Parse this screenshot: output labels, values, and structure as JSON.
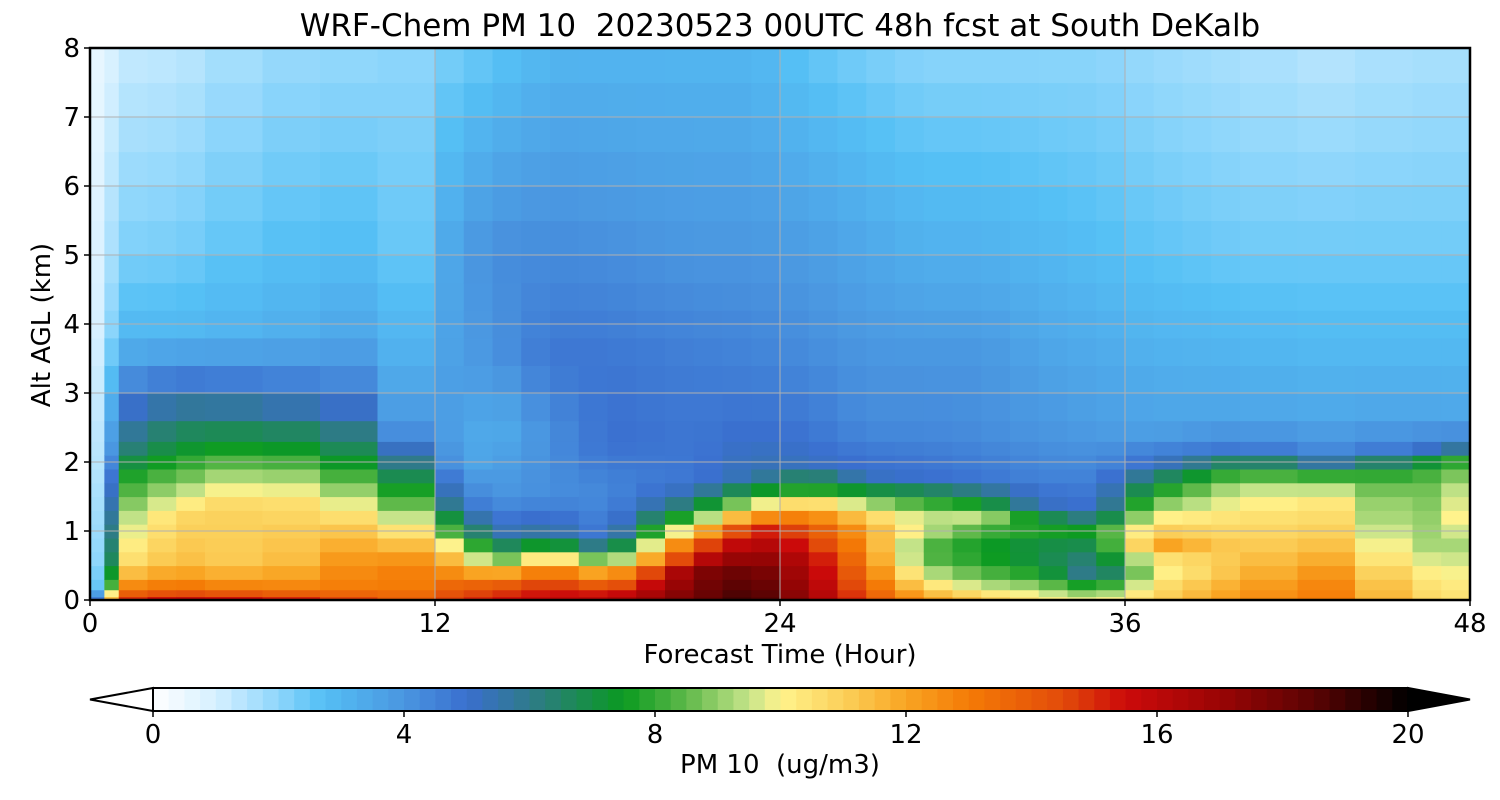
{
  "chart_data": {
    "type": "heatmap",
    "title": "WRF-Chem PM 10  20230523 00UTC 48h fcst at South DeKalb",
    "xlabel": "Forecast Time (Hour)",
    "ylabel": "Alt AGL (km)",
    "xlim": [
      0,
      48
    ],
    "ylim": [
      0,
      8
    ],
    "xticks": [
      0,
      12,
      24,
      36,
      48
    ],
    "yticks": [
      0,
      1,
      2,
      3,
      4,
      5,
      6,
      7,
      8
    ],
    "grid": true,
    "colorbar": {
      "label": "PM 10  (ug/m3)",
      "range": [
        0,
        20
      ],
      "ticks": [
        0,
        4,
        8,
        12,
        16,
        20
      ],
      "extend": "both",
      "orientation": "horizontal",
      "placement": "bottom"
    },
    "x": [
      0,
      0.5,
      1,
      2,
      3,
      4,
      6,
      8,
      10,
      12,
      13,
      14,
      15,
      16,
      17,
      18,
      19,
      20,
      21,
      22,
      23,
      24,
      25,
      26,
      27,
      28,
      29,
      30,
      31,
      32,
      33,
      34,
      35,
      36,
      37,
      38,
      39,
      40,
      42,
      44,
      46,
      47,
      48
    ],
    "y": [
      0,
      0.05,
      0.15,
      0.3,
      0.5,
      0.7,
      0.9,
      1.1,
      1.3,
      1.5,
      1.7,
      1.9,
      2.1,
      2.3,
      2.6,
      3.0,
      3.4,
      3.8,
      4.2,
      4.6,
      5.0,
      5.5,
      6.0,
      6.5,
      7.0,
      7.5,
      8.0
    ],
    "z_approx": "PM10 concentration (ug/m3) by forecast hour (x) and altitude (y); see profile keyframes",
    "profiles": [
      {
        "t": 0,
        "alt": [
          0,
          8
        ],
        "pm": [
          1,
          0.5
        ]
      },
      {
        "t": 0.5,
        "alt": [
          0,
          0.2,
          0.6,
          2,
          4,
          8
        ],
        "pm": [
          9,
          4,
          3,
          2,
          1.2,
          0.6
        ]
      },
      {
        "t": 1,
        "alt": [
          0,
          0.15,
          0.5,
          1.2,
          1.8,
          2.2,
          3,
          3.8,
          5,
          8
        ],
        "pm": [
          15,
          13,
          10.5,
          9,
          7.5,
          6,
          4.5,
          3,
          2.2,
          1.2
        ]
      },
      {
        "t": 3,
        "alt": [
          0,
          0.15,
          0.5,
          1.2,
          1.8,
          2.2,
          3,
          3.8,
          5,
          8
        ],
        "pm": [
          16.5,
          13.5,
          11.5,
          10.8,
          8.5,
          7.2,
          5.3,
          3,
          2.3,
          1.3
        ]
      },
      {
        "t": 6,
        "alt": [
          0,
          0.15,
          0.5,
          1.4,
          1.8,
          2.3,
          3,
          3.8,
          5,
          8
        ],
        "pm": [
          16,
          13,
          11,
          11,
          9.5,
          7.3,
          5,
          3.2,
          2.7,
          1.8
        ]
      },
      {
        "t": 9,
        "alt": [
          0,
          0.15,
          0.5,
          1.1,
          1.6,
          2.1,
          3,
          3.8,
          5,
          8
        ],
        "pm": [
          15,
          13,
          12.5,
          11,
          9,
          7,
          4.6,
          3.5,
          2.8,
          1.9
        ]
      },
      {
        "t": 11,
        "alt": [
          0,
          0.2,
          0.5,
          1.0,
          1.4,
          1.8,
          2.5,
          3.5,
          5,
          8
        ],
        "pm": [
          14,
          13,
          12.8,
          10.5,
          8.5,
          6.8,
          4,
          3.2,
          2.5,
          2
        ]
      },
      {
        "t": 13,
        "alt": [
          0,
          0.2,
          0.4,
          0.7,
          1.0,
          1.4,
          2,
          3,
          5,
          8
        ],
        "pm": [
          15,
          14,
          12.5,
          10.5,
          7.5,
          5,
          3.5,
          3.8,
          3.8,
          2.3
        ]
      },
      {
        "t": 14,
        "alt": [
          0,
          0.2,
          0.4,
          0.6,
          0.9,
          1.5,
          2.5,
          3.5,
          5,
          8
        ],
        "pm": [
          15.5,
          14,
          11.5,
          8,
          5.5,
          4,
          3.2,
          4,
          4.2,
          2.5
        ]
      },
      {
        "t": 16,
        "alt": [
          0,
          0.3,
          0.6,
          0.9,
          1.5,
          2.5,
          3.5,
          5,
          8
        ],
        "pm": [
          16,
          14.5,
          11,
          6,
          4.2,
          4.2,
          4.8,
          4.3,
          3
        ]
      },
      {
        "t": 18,
        "alt": [
          0,
          0.2,
          0.45,
          0.7,
          1.0,
          1.5,
          2.3,
          3.5,
          5,
          8
        ],
        "pm": [
          16.5,
          14,
          11,
          6,
          4.5,
          4.3,
          5,
          4.8,
          4.2,
          3
        ]
      },
      {
        "t": 21,
        "alt": [
          0,
          0.4,
          0.8,
          1.0,
          1.3,
          1.7,
          2.5,
          3.5,
          5,
          8
        ],
        "pm": [
          18,
          17.5,
          14,
          11,
          7,
          4.8,
          4.8,
          4.6,
          4,
          3
        ]
      },
      {
        "t": 23,
        "alt": [
          0,
          0.5,
          1.0,
          1.3,
          1.5,
          1.8,
          2.5,
          3.5,
          5,
          8
        ],
        "pm": [
          19.2,
          18,
          15.5,
          11,
          8,
          5.5,
          5,
          4.5,
          4,
          3
        ]
      },
      {
        "t": 25,
        "alt": [
          0,
          0.6,
          1.1,
          1.4,
          1.6,
          2.0,
          2.5,
          3.5,
          5,
          8
        ],
        "pm": [
          17,
          16,
          14,
          11,
          8,
          5.2,
          4.8,
          4.3,
          3.8,
          2.5
        ]
      },
      {
        "t": 27,
        "alt": [
          0,
          0.5,
          1.0,
          1.3,
          1.5,
          1.8,
          2.5,
          3.5,
          5,
          8
        ],
        "pm": [
          14.5,
          13,
          12,
          10.5,
          8,
          5.2,
          4.3,
          4,
          3.5,
          2.2
        ]
      },
      {
        "t": 29,
        "alt": [
          0,
          0.3,
          0.7,
          1.1,
          1.5,
          1.8,
          2.5,
          3.5,
          5,
          8
        ],
        "pm": [
          12.5,
          10,
          8,
          10,
          7.5,
          5,
          4.3,
          4,
          3.2,
          2
        ]
      },
      {
        "t": 31,
        "alt": [
          0,
          0.2,
          0.5,
          0.9,
          1.2,
          1.5,
          1.8,
          2.5,
          3.5,
          5,
          8
        ],
        "pm": [
          11.5,
          9.5,
          7.8,
          7.5,
          9.5,
          6.5,
          4.8,
          4.2,
          4,
          3.2,
          2
        ]
      },
      {
        "t": 33,
        "alt": [
          0,
          0.2,
          0.5,
          0.8,
          1.1,
          1.4,
          1.8,
          2.5,
          3.5,
          5,
          8
        ],
        "pm": [
          10.5,
          9,
          7,
          7,
          8,
          5.2,
          4.5,
          4,
          3.6,
          3,
          2
        ]
      },
      {
        "t": 35,
        "alt": [
          0,
          0.2,
          0.4,
          0.7,
          1.0,
          1.3,
          1.8,
          2.5,
          3.5,
          5,
          8
        ],
        "pm": [
          10,
          7.5,
          5.5,
          6.5,
          7.5,
          5,
          4.5,
          3.8,
          3.4,
          2.8,
          2
        ]
      },
      {
        "t": 37,
        "alt": [
          0,
          0.2,
          0.5,
          0.8,
          1.2,
          1.6,
          2.0,
          2.5,
          3.5,
          5,
          8
        ],
        "pm": [
          11,
          10.5,
          9.5,
          12.2,
          10,
          7.5,
          5,
          3.6,
          3.2,
          2.6,
          1.8
        ]
      },
      {
        "t": 40,
        "alt": [
          0,
          0.4,
          0.8,
          1.2,
          1.6,
          1.9,
          2.2,
          2.6,
          3.5,
          5,
          8
        ],
        "pm": [
          12.5,
          11.5,
          11,
          10.5,
          9.5,
          7.8,
          4.8,
          3.6,
          3.1,
          2.4,
          1.6
        ]
      },
      {
        "t": 43,
        "alt": [
          0,
          0.3,
          0.7,
          1.1,
          1.5,
          1.8,
          2.1,
          2.6,
          3.5,
          5,
          8
        ],
        "pm": [
          13,
          12.6,
          11.5,
          10.8,
          10.2,
          8,
          4.5,
          3.5,
          3,
          2.4,
          1.4
        ]
      },
      {
        "t": 46,
        "alt": [
          0,
          0.3,
          0.8,
          1.2,
          1.6,
          1.9,
          2.2,
          2.6,
          3.5,
          5,
          8
        ],
        "pm": [
          11,
          10.5,
          9.2,
          8.5,
          8.3,
          7.8,
          4.8,
          3.6,
          3,
          2.4,
          1.6
        ]
      },
      {
        "t": 48,
        "alt": [
          0,
          0.3,
          0.8,
          1.2,
          1.6,
          2.0,
          2.3,
          2.6,
          3.5,
          5,
          8
        ],
        "pm": [
          10.5,
          10,
          9.2,
          10.5,
          9.8,
          8.3,
          4.8,
          3.5,
          3,
          2.4,
          1.6
        ]
      }
    ],
    "colormap_stops": [
      {
        "v": 0,
        "c": "#ffffff"
      },
      {
        "v": 1,
        "c": "#d6f0ff"
      },
      {
        "v": 2,
        "c": "#8ed6fb"
      },
      {
        "v": 2.7,
        "c": "#55c0f5"
      },
      {
        "v": 4,
        "c": "#4a96e0"
      },
      {
        "v": 5,
        "c": "#3a6fcf"
      },
      {
        "v": 6,
        "c": "#2f7a8a"
      },
      {
        "v": 7.5,
        "c": "#0a9a20"
      },
      {
        "v": 8.5,
        "c": "#5fb94a"
      },
      {
        "v": 9.5,
        "c": "#c6e48a"
      },
      {
        "v": 10,
        "c": "#fff38c"
      },
      {
        "v": 11,
        "c": "#fbd05a"
      },
      {
        "v": 12,
        "c": "#f9a422"
      },
      {
        "v": 13,
        "c": "#f47b06"
      },
      {
        "v": 14.5,
        "c": "#e24b0a"
      },
      {
        "v": 15.5,
        "c": "#cc0a0a"
      },
      {
        "v": 17,
        "c": "#9a0505"
      },
      {
        "v": 18.5,
        "c": "#5a0303"
      },
      {
        "v": 20,
        "c": "#000000"
      }
    ]
  }
}
